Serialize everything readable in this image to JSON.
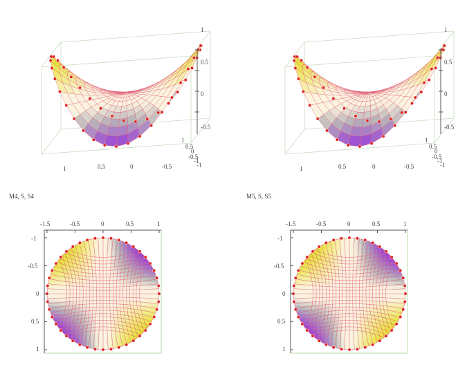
{
  "chart_data": [
    {
      "type": "surface3d",
      "surface": "saddle",
      "z_ticks": [
        "1",
        "0.5",
        "0",
        "-0.5"
      ],
      "x_ticks": [
        "1",
        "0.5",
        "0",
        "-0.5",
        "-1"
      ],
      "y_ticks": [
        "1",
        "0.5",
        "0",
        "-0.5",
        "-1"
      ],
      "z_range": [
        -1,
        1
      ],
      "grid_lines": 20,
      "boundary_points": 40
    },
    {
      "type": "surface3d",
      "surface": "saddle",
      "z_ticks": [
        "1",
        "0.5",
        "0",
        "-0.5"
      ],
      "x_ticks": [
        "1",
        "0.5",
        "0",
        "-0.5",
        "-1"
      ],
      "y_ticks": [
        "1",
        "0.5",
        "0",
        "-0.5",
        "-1"
      ],
      "z_range": [
        -1,
        1
      ],
      "grid_lines": 20,
      "boundary_points": 40
    },
    {
      "type": "contour",
      "caption": "M4, S, S4",
      "top_ticks": [
        "-0.5",
        "0",
        "0.5",
        "1"
      ],
      "top_overlap_tick": "-1.5",
      "left_ticks": [
        "-1",
        "-0.5",
        "0",
        "0.5",
        "1"
      ],
      "x_range": [
        -1,
        1
      ],
      "y_range": [
        -1,
        1
      ],
      "radius": 1,
      "grid_lines": 22,
      "boundary_points": 44
    },
    {
      "type": "contour",
      "caption": "M5, S, S5",
      "top_ticks": [
        "-0.5",
        "0",
        "0.5",
        "1"
      ],
      "top_overlap_tick": "-1.5",
      "left_ticks": [
        "-1",
        "-0.5",
        "0",
        "0.5",
        "1"
      ],
      "x_range": [
        -1,
        1
      ],
      "y_range": [
        -1,
        1
      ],
      "radius": 1,
      "grid_lines": 22,
      "boundary_points": 44
    }
  ],
  "colors": {
    "yellow": "#e8e23a",
    "cream": "#fbf3df",
    "gray": "#b7b3b8",
    "violet": "#9a3fd6",
    "mesh": "#e0607a",
    "dot": "#e02020",
    "box": "#7fbf6a"
  }
}
